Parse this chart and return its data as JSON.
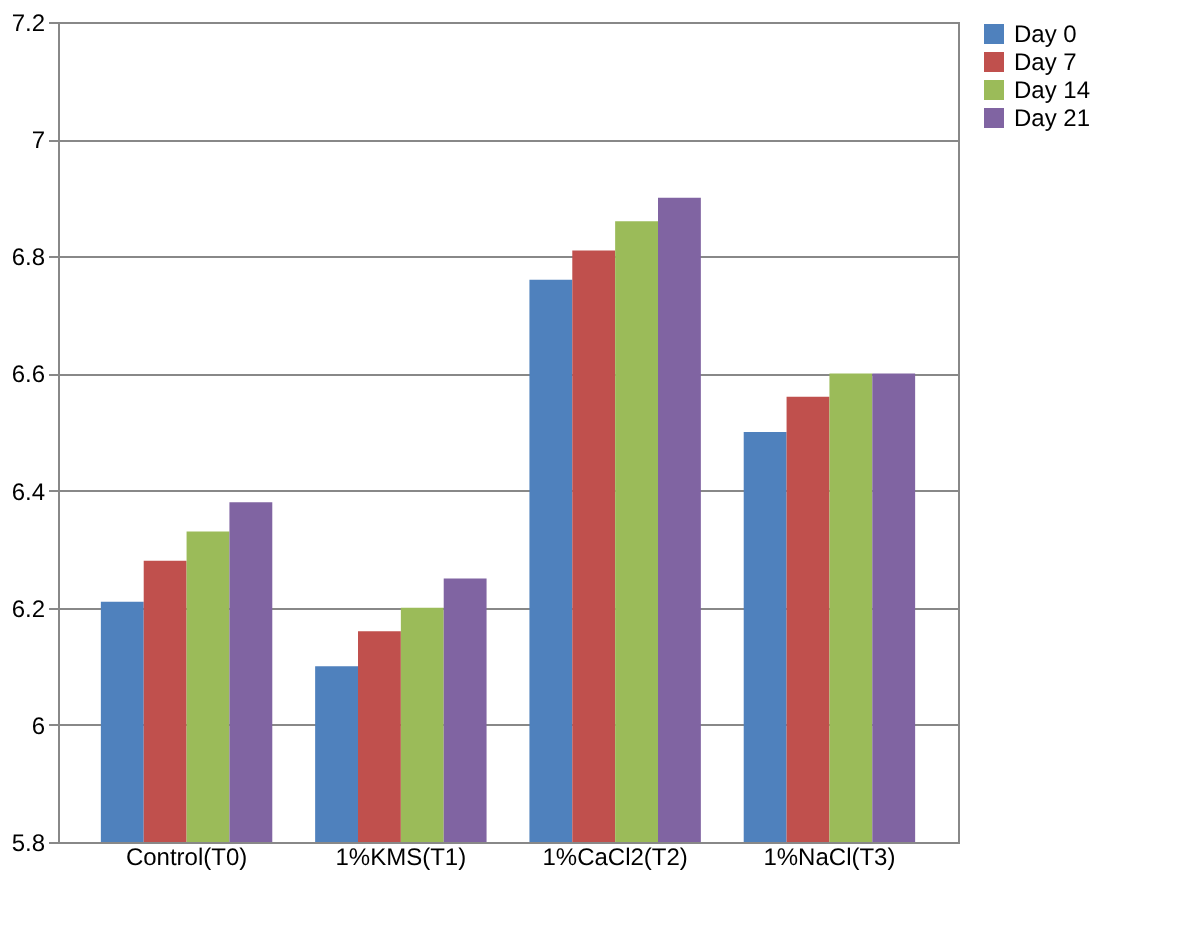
{
  "chart_data": {
    "type": "bar",
    "categories": [
      "Control(T0)",
      "1%KMS(T1)",
      "1%CaCl2(T2)",
      "1%NaCl(T3)"
    ],
    "series": [
      {
        "name": "Day 0",
        "color": "#4f81bd",
        "values": [
          6.21,
          6.1,
          6.76,
          6.5
        ]
      },
      {
        "name": "Day 7",
        "color": "#c0504d",
        "values": [
          6.28,
          6.16,
          6.81,
          6.56
        ]
      },
      {
        "name": "Day 14",
        "color": "#9bbb59",
        "values": [
          6.33,
          6.2,
          6.86,
          6.6
        ]
      },
      {
        "name": "Day 21",
        "color": "#8064a2",
        "values": [
          6.38,
          6.25,
          6.9,
          6.6
        ]
      }
    ],
    "ylim": [
      5.8,
      7.2
    ],
    "yticks": [
      5.8,
      6,
      6.2,
      6.4,
      6.6,
      6.8,
      7,
      7.2
    ],
    "grid": "y",
    "legend": "right"
  }
}
